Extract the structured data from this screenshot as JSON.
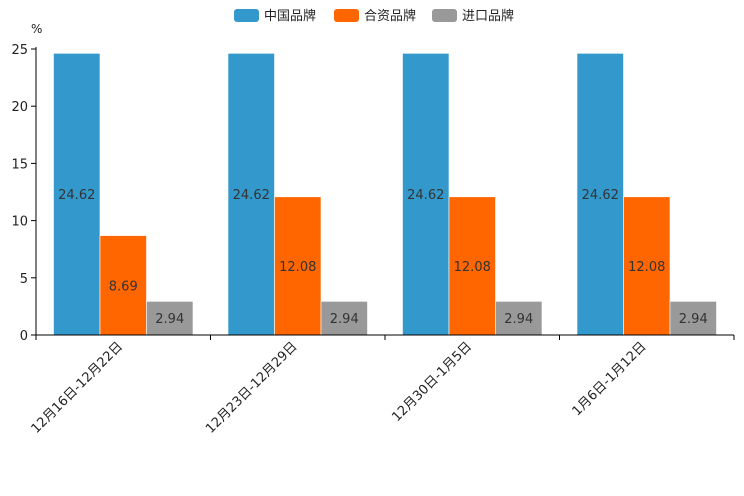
{
  "chart_data": {
    "type": "bar",
    "unit": "%",
    "categories": [
      "12月16日-12月22日",
      "12月23日-12月29日",
      "12月30日-1月5日",
      "1月6日-1月12日"
    ],
    "series": [
      {
        "name": "中国品牌",
        "color": "#3399CC",
        "values": [
          24.62,
          24.62,
          24.62,
          24.62
        ]
      },
      {
        "name": "合资品牌",
        "color": "#FF6600",
        "values": [
          8.69,
          12.08,
          12.08,
          12.08
        ]
      },
      {
        "name": "进口品牌",
        "color": "#999999",
        "values": [
          2.94,
          2.94,
          2.94,
          2.94
        ]
      }
    ],
    "ylim": [
      0,
      25
    ],
    "yticks": [
      0,
      5,
      10,
      15,
      20,
      25
    ],
    "legend_position": "top-center",
    "grid": false
  }
}
